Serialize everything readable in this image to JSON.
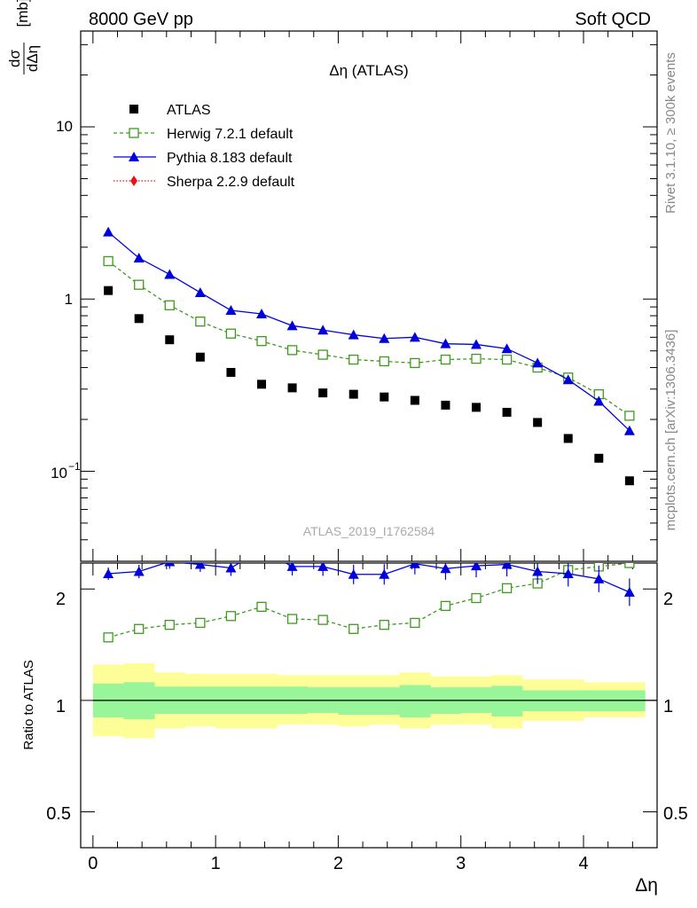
{
  "header": {
    "left": "8000 GeV pp",
    "right": "Soft QCD"
  },
  "side": {
    "top": "Rivet 3.1.10, ≥ 300k events",
    "bottom": "mcplots.cern.ch [arXiv:1306.3436]"
  },
  "colors": {
    "atlas": "#000000",
    "herwig": "#3e9a1e",
    "pythia": "#0000dd",
    "sherpa": "#ee1111",
    "band_inner": "#99f599",
    "band_outer": "#fefe99"
  },
  "chart_data": [
    {
      "type": "scatter",
      "title": "Δη (ATLAS)",
      "watermark": "ATLAS_2019_I1762584",
      "ylabel": "dσ/dΔη [mb]",
      "ylabel_num": "dσ",
      "ylabel_den": "dΔη",
      "ylabel_unit": "[mb]",
      "yscale": "log",
      "ylim": [
        0.03,
        36
      ],
      "xlim": [
        -0.1,
        4.6
      ],
      "yticks": [
        {
          "v": 10,
          "label": "10"
        },
        {
          "v": 1,
          "label": "1"
        }
      ],
      "ytick_neg": {
        "v": 0.1,
        "base": "10",
        "exp": "−1"
      },
      "legend": [
        {
          "key": "atlas",
          "label": "ATLAS"
        },
        {
          "key": "herwig",
          "label": "Herwig 7.2.1 default"
        },
        {
          "key": "pythia",
          "label": "Pythia 8.183 default"
        },
        {
          "key": "sherpa",
          "label": "Sherpa 2.2.9 default"
        }
      ],
      "x": [
        0.125,
        0.375,
        0.625,
        0.875,
        1.125,
        1.375,
        1.625,
        1.875,
        2.125,
        2.375,
        2.625,
        2.875,
        3.125,
        3.375,
        3.625,
        3.875,
        4.125,
        4.375
      ],
      "series": [
        {
          "key": "atlas",
          "name": "ATLAS",
          "values": [
            1.12,
            0.77,
            0.58,
            0.46,
            0.375,
            0.32,
            0.305,
            0.285,
            0.28,
            0.27,
            0.258,
            0.242,
            0.235,
            0.22,
            0.192,
            0.155,
            0.119,
            0.088
          ]
        },
        {
          "key": "herwig",
          "name": "Herwig 7.2.1 default",
          "values": [
            1.66,
            1.21,
            0.92,
            0.74,
            0.63,
            0.57,
            0.505,
            0.475,
            0.445,
            0.435,
            0.425,
            0.445,
            0.45,
            0.445,
            0.4,
            0.35,
            0.28,
            0.21
          ]
        },
        {
          "key": "pythia",
          "name": "Pythia 8.183 default",
          "values": [
            2.45,
            1.73,
            1.39,
            1.09,
            0.86,
            0.82,
            0.7,
            0.66,
            0.62,
            0.59,
            0.6,
            0.55,
            0.545,
            0.515,
            0.425,
            0.34,
            0.255,
            0.172
          ]
        },
        {
          "key": "sherpa",
          "name": "Sherpa 2.2.9 default",
          "values": []
        }
      ]
    },
    {
      "type": "scatter",
      "ylabel": "Ratio to ATLAS",
      "xlabel": "Δη",
      "yscale": "log",
      "ylim": [
        0.4,
        2.35
      ],
      "xlim": [
        -0.1,
        4.6
      ],
      "xticks": [
        0,
        1,
        2,
        3,
        4
      ],
      "yticks": [
        {
          "v": 0.5,
          "label": "0.5"
        },
        {
          "v": 1,
          "label": "1"
        },
        {
          "v": 2,
          "label": "2"
        }
      ],
      "band_edges": [
        0,
        0.25,
        0.5,
        0.75,
        1,
        1.25,
        1.5,
        1.75,
        2,
        2.25,
        2.5,
        2.75,
        3,
        3.25,
        3.5,
        3.75,
        4,
        4.25,
        4.5
      ],
      "band_inner": [
        [
          0.9,
          1.11
        ],
        [
          0.89,
          1.12
        ],
        [
          0.92,
          1.09
        ],
        [
          0.92,
          1.09
        ],
        [
          0.92,
          1.09
        ],
        [
          0.92,
          1.09
        ],
        [
          0.92,
          1.09
        ],
        [
          0.925,
          1.085
        ],
        [
          0.915,
          1.085
        ],
        [
          0.915,
          1.085
        ],
        [
          0.9,
          1.1
        ],
        [
          0.92,
          1.085
        ],
        [
          0.925,
          1.085
        ],
        [
          0.905,
          1.095
        ],
        [
          0.935,
          1.065
        ],
        [
          0.935,
          1.065
        ],
        [
          0.935,
          1.065
        ],
        [
          0.935,
          1.065
        ]
      ],
      "band_outer": [
        [
          0.8,
          1.25
        ],
        [
          0.79,
          1.26
        ],
        [
          0.84,
          1.19
        ],
        [
          0.85,
          1.18
        ],
        [
          0.84,
          1.18
        ],
        [
          0.84,
          1.18
        ],
        [
          0.86,
          1.17
        ],
        [
          0.86,
          1.17
        ],
        [
          0.85,
          1.17
        ],
        [
          0.86,
          1.17
        ],
        [
          0.84,
          1.19
        ],
        [
          0.86,
          1.16
        ],
        [
          0.86,
          1.16
        ],
        [
          0.84,
          1.17
        ],
        [
          0.88,
          1.14
        ],
        [
          0.88,
          1.14
        ],
        [
          0.9,
          1.12
        ],
        [
          0.9,
          1.12
        ]
      ],
      "series": [
        {
          "key": "herwig",
          "name": "Herwig 7.2.1 default",
          "values": [
            1.48,
            1.56,
            1.6,
            1.62,
            1.69,
            1.79,
            1.66,
            1.65,
            1.56,
            1.6,
            1.62,
            1.8,
            1.89,
            2.01,
            2.07,
            2.25,
            2.3,
            2.35
          ]
        },
        {
          "key": "pythia",
          "name": "Pythia 8.183 default",
          "values": [
            2.2,
            2.23,
            2.37,
            2.33,
            2.28,
            2.55,
            2.3,
            2.3,
            2.19,
            2.19,
            2.34,
            2.27,
            2.31,
            2.33,
            2.23,
            2.2,
            2.13,
            1.96
          ]
        },
        {
          "key": "sherpa",
          "name": "Sherpa 2.2.9 default",
          "values": []
        }
      ]
    }
  ]
}
